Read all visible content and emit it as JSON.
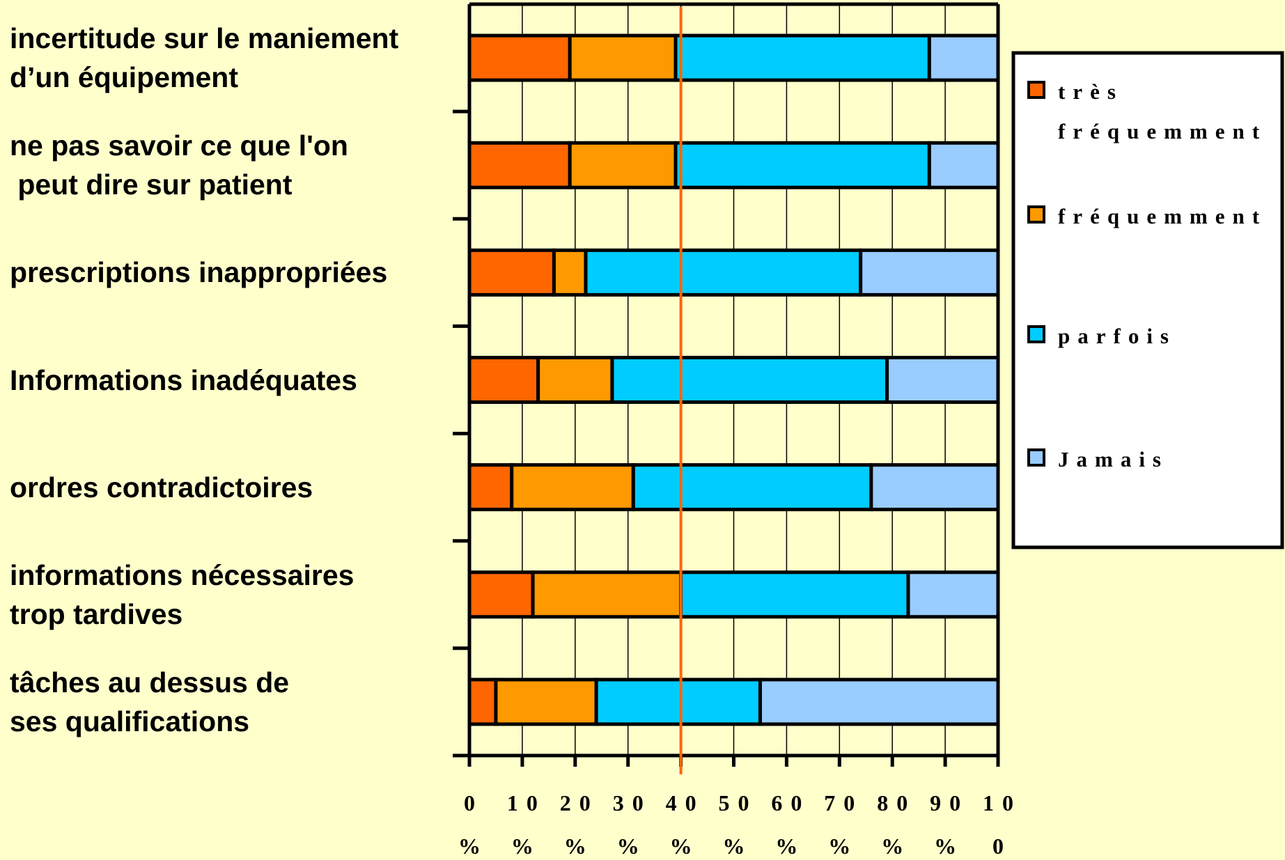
{
  "chart_data": {
    "type": "stacked-barh",
    "categories": [
      "incertitude sur le maniement\nd’un équipement",
      "ne pas savoir ce que l'on\n peut dire sur patient",
      "prescriptions inappropriées",
      "Informations inadéquates",
      "ordres contradictoires",
      "informations nécessaires\ntrop tardives",
      "tâches au dessus de\nses qualifications"
    ],
    "series": [
      {
        "name": "très fréquemment",
        "color": "#ff6600",
        "values": [
          19,
          19,
          16,
          13,
          8,
          12,
          5
        ]
      },
      {
        "name": "fréquemment",
        "color": "#ff9900",
        "values": [
          20,
          20,
          6,
          14,
          23,
          28,
          19
        ]
      },
      {
        "name": "parfois",
        "color": "#00ccff",
        "values": [
          48,
          48,
          52,
          52,
          45,
          43,
          31
        ]
      },
      {
        "name": "Jamais",
        "color": "#99ccff",
        "values": [
          13,
          13,
          26,
          21,
          24,
          17,
          45
        ]
      }
    ],
    "xlim": [
      0,
      100
    ],
    "xticks": [
      {
        "value": 0,
        "label": "0 %"
      },
      {
        "value": 10,
        "label": "10 %"
      },
      {
        "value": 20,
        "label": "20 %"
      },
      {
        "value": 30,
        "label": "30 %"
      },
      {
        "value": 40,
        "label": "40 %"
      },
      {
        "value": 50,
        "label": "50 %"
      },
      {
        "value": 60,
        "label": "60 %"
      },
      {
        "value": 70,
        "label": "70 %"
      },
      {
        "value": 80,
        "label": "80 %"
      },
      {
        "value": 90,
        "label": "90 %"
      },
      {
        "value": 100,
        "label": "10 0"
      }
    ],
    "grid": true,
    "reference_line": {
      "value": 40,
      "color": "#ff6600"
    },
    "legend": "right"
  }
}
